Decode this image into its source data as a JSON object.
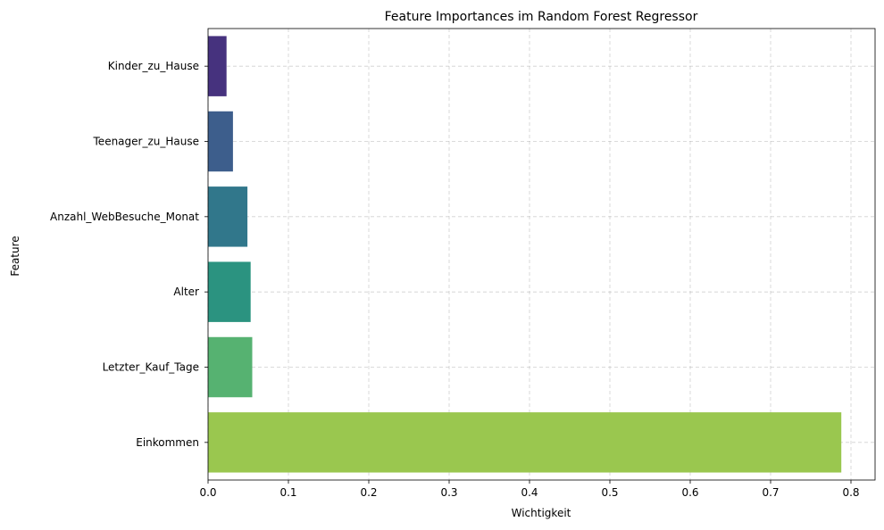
{
  "chart_data": {
    "type": "bar",
    "orientation": "horizontal",
    "title": "Feature Importances im Random Forest Regressor",
    "xlabel": "Wichtigkeit",
    "ylabel": "Feature",
    "categories": [
      "Kinder_zu_Hause",
      "Teenager_zu_Hause",
      "Anzahl_WebBesuche_Monat",
      "Alter",
      "Letzter_Kauf_Tage",
      "Einkommen"
    ],
    "values": [
      0.023,
      0.031,
      0.049,
      0.053,
      0.055,
      0.788
    ],
    "colors": [
      "#46327e",
      "#3d5e8c",
      "#31778b",
      "#2b9380",
      "#56b271",
      "#9ac74f"
    ],
    "xlim": [
      0,
      0.83
    ],
    "xticks": [
      0,
      0.1,
      0.2,
      0.3,
      0.4,
      0.5,
      0.6,
      0.7,
      0.8
    ],
    "xtick_labels": [
      "0.0",
      "0.1",
      "0.2",
      "0.3",
      "0.4",
      "0.5",
      "0.6",
      "0.7",
      "0.8"
    ],
    "grid": true,
    "legend": "none"
  }
}
